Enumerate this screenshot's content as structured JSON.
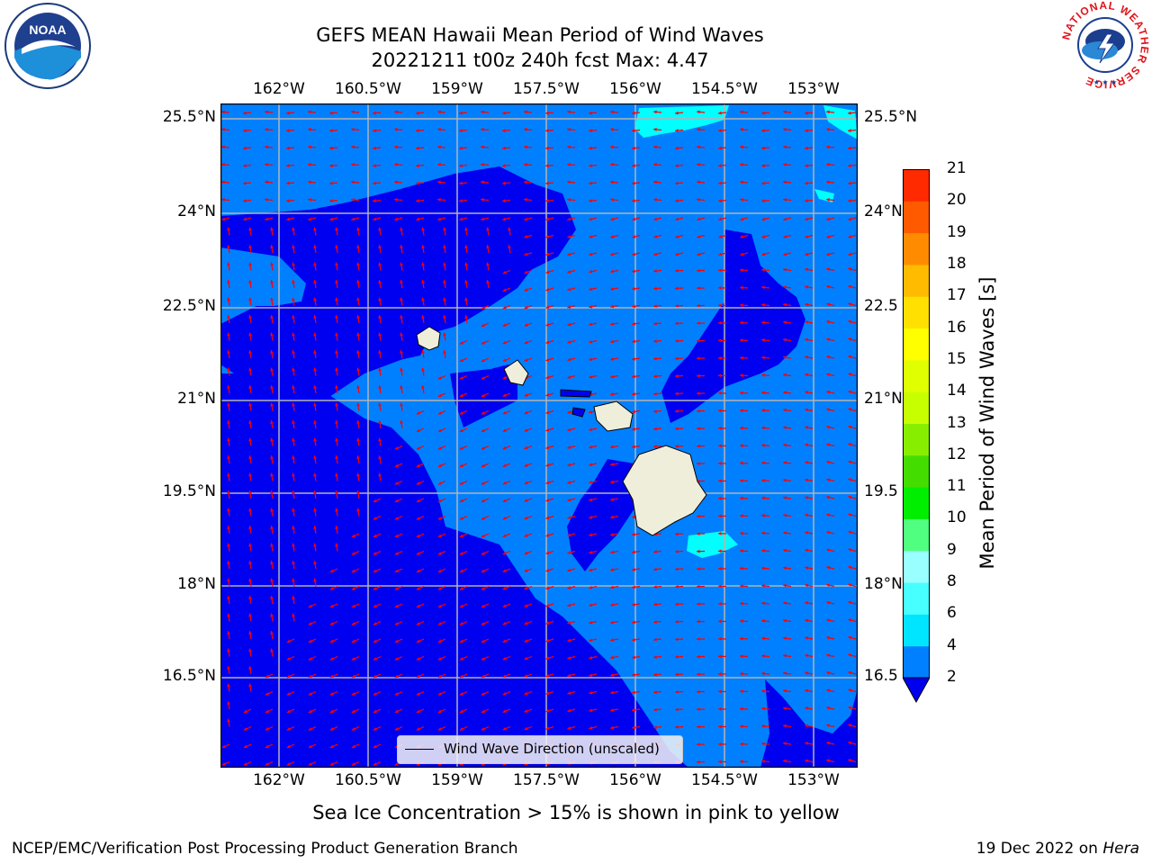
{
  "title": {
    "line1": "GEFS MEAN Hawaii Mean Period of Wind Waves",
    "line2": "20221211 t00z 240h fcst   Max: 4.47"
  },
  "map": {
    "lon_ticks": [
      "162°W",
      "160.5°W",
      "159°W",
      "157.5°W",
      "156°W",
      "154.5°W",
      "153°W"
    ],
    "lat_ticks_left": [
      "25.5°N",
      "24°N",
      "22.5°N",
      "21°N",
      "19.5°N",
      "18°N",
      "16.5°N"
    ],
    "lat_ticks_right": [
      "25.5°N",
      "24°N",
      "22.5",
      "21°N",
      "19.5",
      "18°N",
      "16.5"
    ],
    "colors": {
      "band_2_4": "#0080ff",
      "below_2": "#0000f0",
      "band_4_6": "#00ffff",
      "land": "#efeedb",
      "arrow": "#ff0000",
      "grid": "#b4b4b4"
    },
    "legend_label": "Wind Wave Direction (unscaled)"
  },
  "colorbar": {
    "label": "Mean Period of Wind Waves [s]",
    "ticks": [
      "2",
      "4",
      "6",
      "8",
      "9",
      "10",
      "11",
      "12",
      "13",
      "14",
      "15",
      "16",
      "17",
      "18",
      "19",
      "20",
      "21"
    ],
    "colors": [
      "#0080ff",
      "#00e5ff",
      "#47ffff",
      "#99ffff",
      "#50ff80",
      "#00ee00",
      "#44dd00",
      "#88ee00",
      "#c8ff00",
      "#e0ff00",
      "#ffff00",
      "#ffe000",
      "#ffbb00",
      "#ff8c00",
      "#ff5a00",
      "#ff2a00",
      "#ff0000"
    ],
    "under_color": "#0000f0"
  },
  "footer": {
    "note": "Sea Ice Concentration > 15% is shown in pink to yellow",
    "left": "NCEP/EMC/Verification Post Processing Product Generation Branch",
    "right_date": "19 Dec 2022 on ",
    "right_host": "Hera"
  },
  "logos": {
    "noaa_text": "NOAA",
    "nws_ring": "NATIONAL WEATHER SERVICE"
  }
}
